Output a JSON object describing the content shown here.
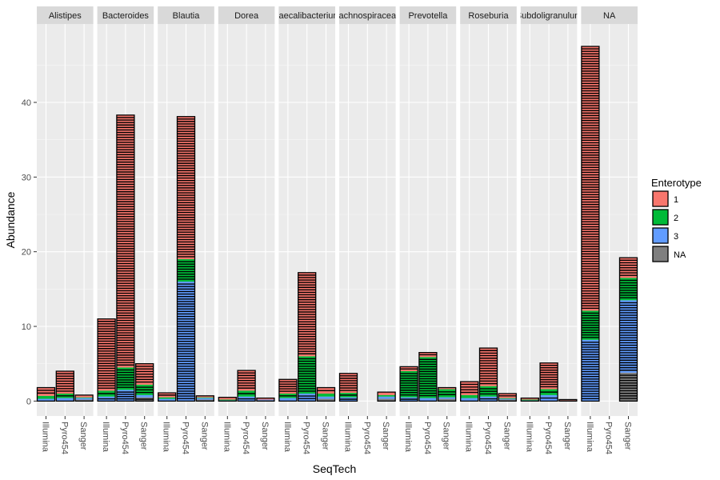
{
  "chart_data": {
    "type": "bar",
    "stacked": true,
    "facet_by": "Genus",
    "xlabel": "SeqTech",
    "ylabel": "Abundance",
    "ylim": [
      -2,
      50.5
    ],
    "yticks": [
      0,
      10,
      20,
      30,
      40
    ],
    "grid": true,
    "legend_position": "right",
    "categories": [
      "Illumina",
      "Pyro454",
      "Sanger"
    ],
    "legend": {
      "title": "Enterotype",
      "entries": [
        {
          "label": "1",
          "color": "#F8766D"
        },
        {
          "label": "2",
          "color": "#00BA38"
        },
        {
          "label": "3",
          "color": "#619CFF"
        },
        {
          "label": "NA",
          "color": "#7F7F7F"
        }
      ]
    },
    "facets": [
      {
        "name": "Alistipes",
        "bars": [
          {
            "x": "Illumina",
            "segments": [
              {
                "g": "NA",
                "v": 0.0
              },
              {
                "g": "3",
                "v": 0.3
              },
              {
                "g": "2",
                "v": 0.4
              },
              {
                "g": "1",
                "v": 1.1
              }
            ]
          },
          {
            "x": "Pyro454",
            "segments": [
              {
                "g": "NA",
                "v": 0.0
              },
              {
                "g": "3",
                "v": 0.4
              },
              {
                "g": "2",
                "v": 0.6
              },
              {
                "g": "1",
                "v": 3.0
              }
            ]
          },
          {
            "x": "Sanger",
            "segments": [
              {
                "g": "NA",
                "v": 0.2
              },
              {
                "g": "3",
                "v": 0.2
              },
              {
                "g": "2",
                "v": 0.1
              },
              {
                "g": "1",
                "v": 0.3
              }
            ]
          }
        ]
      },
      {
        "name": "Bacteroides",
        "bars": [
          {
            "x": "Illumina",
            "segments": [
              {
                "g": "NA",
                "v": 0.0
              },
              {
                "g": "3",
                "v": 0.6
              },
              {
                "g": "2",
                "v": 0.8
              },
              {
                "g": "1",
                "v": 9.6
              }
            ]
          },
          {
            "x": "Pyro454",
            "segments": [
              {
                "g": "NA",
                "v": 0.0
              },
              {
                "g": "3",
                "v": 1.5
              },
              {
                "g": "2",
                "v": 3.0
              },
              {
                "g": "1",
                "v": 33.8
              }
            ]
          },
          {
            "x": "Sanger",
            "segments": [
              {
                "g": "NA",
                "v": 0.5
              },
              {
                "g": "3",
                "v": 0.3
              },
              {
                "g": "2",
                "v": 1.4
              },
              {
                "g": "1",
                "v": 2.8
              }
            ]
          }
        ]
      },
      {
        "name": "Blautia",
        "bars": [
          {
            "x": "Illumina",
            "segments": [
              {
                "g": "NA",
                "v": 0.0
              },
              {
                "g": "3",
                "v": 0.3
              },
              {
                "g": "2",
                "v": 0.2
              },
              {
                "g": "1",
                "v": 0.6
              }
            ]
          },
          {
            "x": "Pyro454",
            "segments": [
              {
                "g": "NA",
                "v": 0.0
              },
              {
                "g": "3",
                "v": 16.0
              },
              {
                "g": "2",
                "v": 3.0
              },
              {
                "g": "1",
                "v": 19.1
              }
            ]
          },
          {
            "x": "Sanger",
            "segments": [
              {
                "g": "NA",
                "v": 0.2
              },
              {
                "g": "3",
                "v": 0.2
              },
              {
                "g": "2",
                "v": 0.1
              },
              {
                "g": "1",
                "v": 0.2
              }
            ]
          }
        ]
      },
      {
        "name": "Dorea",
        "bars": [
          {
            "x": "Illumina",
            "segments": [
              {
                "g": "NA",
                "v": 0.0
              },
              {
                "g": "3",
                "v": 0.1
              },
              {
                "g": "2",
                "v": 0.1
              },
              {
                "g": "1",
                "v": 0.3
              }
            ]
          },
          {
            "x": "Pyro454",
            "segments": [
              {
                "g": "NA",
                "v": 0.0
              },
              {
                "g": "3",
                "v": 0.6
              },
              {
                "g": "2",
                "v": 0.8
              },
              {
                "g": "1",
                "v": 2.7
              }
            ]
          },
          {
            "x": "Sanger",
            "segments": [
              {
                "g": "NA",
                "v": 0.1
              },
              {
                "g": "3",
                "v": 0.1
              },
              {
                "g": "2",
                "v": 0.0
              },
              {
                "g": "1",
                "v": 0.2
              }
            ]
          }
        ]
      },
      {
        "name": "Faecalibacterium",
        "bars": [
          {
            "x": "Illumina",
            "segments": [
              {
                "g": "NA",
                "v": 0.0
              },
              {
                "g": "3",
                "v": 0.4
              },
              {
                "g": "2",
                "v": 0.6
              },
              {
                "g": "1",
                "v": 1.9
              }
            ]
          },
          {
            "x": "Pyro454",
            "segments": [
              {
                "g": "NA",
                "v": 0.0
              },
              {
                "g": "3",
                "v": 1.0
              },
              {
                "g": "2",
                "v": 5.0
              },
              {
                "g": "1",
                "v": 11.2
              }
            ]
          },
          {
            "x": "Sanger",
            "segments": [
              {
                "g": "NA",
                "v": 0.3
              },
              {
                "g": "3",
                "v": 0.3
              },
              {
                "g": "2",
                "v": 0.4
              },
              {
                "g": "1",
                "v": 0.8
              }
            ]
          }
        ]
      },
      {
        "name": "Lachnospiraceae",
        "bars": [
          {
            "x": "Illumina",
            "segments": [
              {
                "g": "NA",
                "v": 0.0
              },
              {
                "g": "3",
                "v": 0.5
              },
              {
                "g": "2",
                "v": 0.6
              },
              {
                "g": "1",
                "v": 2.6
              }
            ]
          },
          {
            "x": "Pyro454",
            "segments": [
              {
                "g": "NA",
                "v": 0.0
              },
              {
                "g": "3",
                "v": 0.0
              },
              {
                "g": "2",
                "v": 0.0
              },
              {
                "g": "1",
                "v": 0.0
              }
            ]
          },
          {
            "x": "Sanger",
            "segments": [
              {
                "g": "NA",
                "v": 0.3
              },
              {
                "g": "3",
                "v": 0.3
              },
              {
                "g": "2",
                "v": 0.2
              },
              {
                "g": "1",
                "v": 0.4
              }
            ]
          }
        ]
      },
      {
        "name": "Prevotella",
        "bars": [
          {
            "x": "Illumina",
            "segments": [
              {
                "g": "NA",
                "v": 0.0
              },
              {
                "g": "3",
                "v": 0.5
              },
              {
                "g": "2",
                "v": 3.5
              },
              {
                "g": "1",
                "v": 0.6
              }
            ]
          },
          {
            "x": "Pyro454",
            "segments": [
              {
                "g": "NA",
                "v": 0.0
              },
              {
                "g": "3",
                "v": 0.4
              },
              {
                "g": "2",
                "v": 5.5
              },
              {
                "g": "1",
                "v": 0.6
              }
            ]
          },
          {
            "x": "Sanger",
            "segments": [
              {
                "g": "NA",
                "v": 0.3
              },
              {
                "g": "3",
                "v": 0.2
              },
              {
                "g": "2",
                "v": 1.1
              },
              {
                "g": "1",
                "v": 0.2
              }
            ]
          }
        ]
      },
      {
        "name": "Roseburia",
        "bars": [
          {
            "x": "Illumina",
            "segments": [
              {
                "g": "NA",
                "v": 0.0
              },
              {
                "g": "3",
                "v": 0.4
              },
              {
                "g": "2",
                "v": 0.4
              },
              {
                "g": "1",
                "v": 1.8
              }
            ]
          },
          {
            "x": "Pyro454",
            "segments": [
              {
                "g": "NA",
                "v": 0.0
              },
              {
                "g": "3",
                "v": 0.6
              },
              {
                "g": "2",
                "v": 1.4
              },
              {
                "g": "1",
                "v": 5.1
              }
            ]
          },
          {
            "x": "Sanger",
            "segments": [
              {
                "g": "NA",
                "v": 0.2
              },
              {
                "g": "3",
                "v": 0.1
              },
              {
                "g": "2",
                "v": 0.1
              },
              {
                "g": "1",
                "v": 0.6
              }
            ]
          }
        ]
      },
      {
        "name": "Subdoligranulum",
        "bars": [
          {
            "x": "Illumina",
            "segments": [
              {
                "g": "NA",
                "v": 0.0
              },
              {
                "g": "3",
                "v": 0.1
              },
              {
                "g": "2",
                "v": 0.1
              },
              {
                "g": "1",
                "v": 0.2
              }
            ]
          },
          {
            "x": "Pyro454",
            "segments": [
              {
                "g": "NA",
                "v": 0.0
              },
              {
                "g": "3",
                "v": 0.8
              },
              {
                "g": "2",
                "v": 0.8
              },
              {
                "g": "1",
                "v": 3.5
              }
            ]
          },
          {
            "x": "Sanger",
            "segments": [
              {
                "g": "NA",
                "v": 0.1
              },
              {
                "g": "3",
                "v": 0.0
              },
              {
                "g": "2",
                "v": 0.0
              },
              {
                "g": "1",
                "v": 0.1
              }
            ]
          }
        ]
      },
      {
        "name": "NA",
        "bars": [
          {
            "x": "Illumina",
            "segments": [
              {
                "g": "NA",
                "v": 0.0
              },
              {
                "g": "3",
                "v": 8.2
              },
              {
                "g": "2",
                "v": 3.9
              },
              {
                "g": "1",
                "v": 35.4
              }
            ]
          },
          {
            "x": "Pyro454",
            "segments": [
              {
                "g": "NA",
                "v": 0.0
              },
              {
                "g": "3",
                "v": 0.0
              },
              {
                "g": "2",
                "v": 0.0
              },
              {
                "g": "1",
                "v": 0.0
              }
            ]
          },
          {
            "x": "Sanger",
            "segments": [
              {
                "g": "NA",
                "v": 3.8
              },
              {
                "g": "3",
                "v": 9.7
              },
              {
                "g": "2",
                "v": 3.0
              },
              {
                "g": "1",
                "v": 2.7
              }
            ]
          }
        ]
      }
    ]
  }
}
